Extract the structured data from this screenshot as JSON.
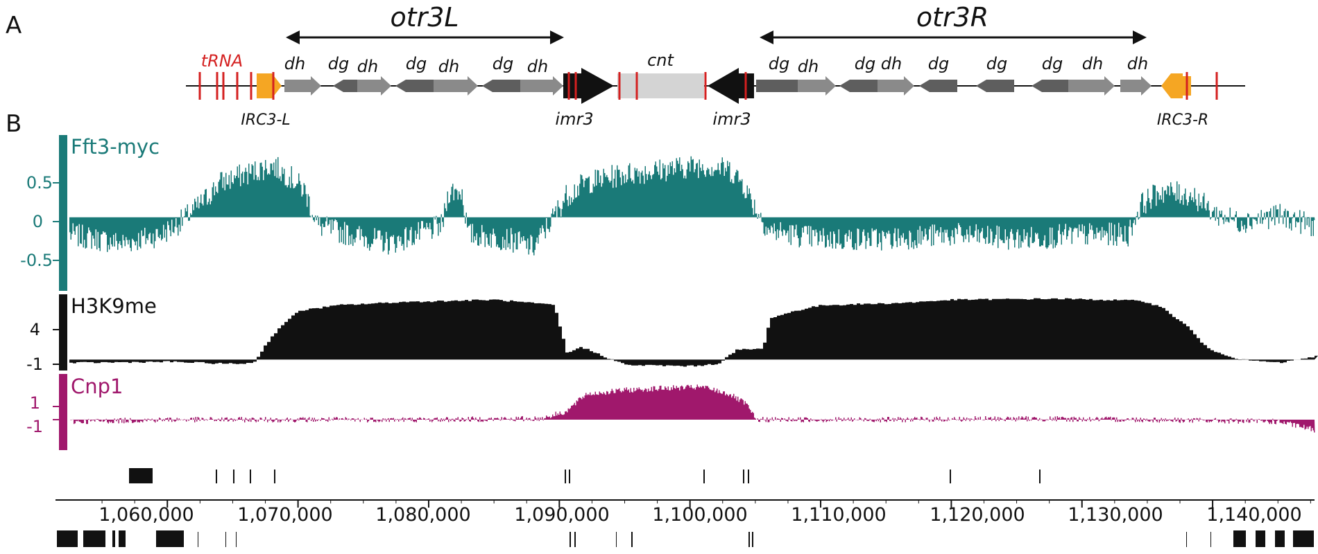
{
  "panels": {
    "a": "A",
    "b": "B"
  },
  "regions": {
    "left": "otr3L",
    "right": "otr3R"
  },
  "features": {
    "trna": "tRNA",
    "irc_left": "IRC3-L",
    "irc_right": "IRC3-R",
    "imr_left": "imr3",
    "imr_right": "imr3",
    "cnt": "cnt"
  },
  "repeat_labels": {
    "left": [
      "dh",
      "dg",
      "dh",
      "dg",
      "dh",
      "dg",
      "dh"
    ],
    "right": [
      "dg",
      "dh",
      "dg",
      "dh",
      "dg",
      "dg",
      "dg",
      "dh",
      "dh"
    ]
  },
  "colors": {
    "fft3": "#1a7a78",
    "h3k9": "#111111",
    "cnp1": "#a0186c",
    "trna": "#d42020",
    "irc": "#f5a623"
  },
  "chart_data": {
    "type": "area",
    "x_axis": {
      "range": [
        1052500,
        1147800
      ],
      "ticks": [
        1060000,
        1070000,
        1080000,
        1090000,
        1100000,
        1110000,
        1120000,
        1130000,
        1140000
      ],
      "tick_labels": [
        "1,060,000",
        "1,070,000",
        "1,080,000",
        "1,090,000",
        "1,100,000",
        "1,110,000",
        "1,120,000",
        "1,130,000",
        "1,140,000"
      ]
    },
    "tracks": [
      {
        "name": "Fft3-myc",
        "ylim": [
          -0.85,
          0.95
        ],
        "ticks": [
          0.5,
          0,
          -0.5
        ],
        "tick_labels": [
          "0.5",
          "0",
          "-0.5"
        ]
      },
      {
        "name": "H3K9me",
        "ylim": [
          -1,
          6
        ],
        "ticks": [
          4,
          -1
        ],
        "tick_labels": [
          "4",
          "-1"
        ]
      },
      {
        "name": "Cnp1",
        "ylim": [
          -3,
          4.5
        ],
        "ticks": [
          1,
          -1
        ],
        "tick_labels": [
          "1",
          "-1"
        ]
      }
    ],
    "series": [
      {
        "name": "Fft3-myc",
        "profile": [
          [
            1052500,
            -0.2
          ],
          [
            1056500,
            -0.3
          ],
          [
            1059500,
            -0.2
          ],
          [
            1061000,
            -0.05
          ],
          [
            1062500,
            0.15
          ],
          [
            1064000,
            0.4
          ],
          [
            1066000,
            0.5
          ],
          [
            1068000,
            0.6
          ],
          [
            1069500,
            0.45
          ],
          [
            1070500,
            0.3
          ],
          [
            1071500,
            -0.1
          ],
          [
            1074000,
            -0.2
          ],
          [
            1077000,
            -0.3
          ],
          [
            1079000,
            -0.2
          ],
          [
            1081000,
            -0.1
          ],
          [
            1081500,
            0.3
          ],
          [
            1082500,
            0.3
          ],
          [
            1083000,
            -0.2
          ],
          [
            1086000,
            -0.25
          ],
          [
            1088000,
            -0.35
          ],
          [
            1089500,
            0.0
          ],
          [
            1090500,
            0.25
          ],
          [
            1092000,
            0.4
          ],
          [
            1095000,
            0.5
          ],
          [
            1098000,
            0.55
          ],
          [
            1101000,
            0.6
          ],
          [
            1103000,
            0.55
          ],
          [
            1104000,
            0.4
          ],
          [
            1105000,
            0.1
          ],
          [
            1106000,
            -0.15
          ],
          [
            1110000,
            -0.25
          ],
          [
            1115000,
            -0.25
          ],
          [
            1120000,
            -0.2
          ],
          [
            1125000,
            -0.25
          ],
          [
            1130000,
            -0.2
          ],
          [
            1133500,
            -0.2
          ],
          [
            1134500,
            0.15
          ],
          [
            1136000,
            0.3
          ],
          [
            1138500,
            0.25
          ],
          [
            1140000,
            0.05
          ],
          [
            1142000,
            -0.05
          ],
          [
            1145000,
            0.02
          ],
          [
            1147800,
            -0.1
          ]
        ]
      },
      {
        "name": "H3K9me",
        "profile": [
          [
            1052500,
            -0.3
          ],
          [
            1060000,
            -0.2
          ],
          [
            1065000,
            -0.4
          ],
          [
            1066500,
            -0.3
          ],
          [
            1067500,
            1.5
          ],
          [
            1068500,
            3.0
          ],
          [
            1070000,
            4.5
          ],
          [
            1073000,
            5.0
          ],
          [
            1078000,
            5.3
          ],
          [
            1085000,
            5.5
          ],
          [
            1089500,
            5.0
          ],
          [
            1090500,
            0.5
          ],
          [
            1091500,
            1.2
          ],
          [
            1093500,
            0.2
          ],
          [
            1095000,
            -0.5
          ],
          [
            1100000,
            -0.6
          ],
          [
            1102000,
            -0.4
          ],
          [
            1103500,
            0.9
          ],
          [
            1105500,
            1.0
          ],
          [
            1106000,
            3.8
          ],
          [
            1108000,
            4.5
          ],
          [
            1110000,
            5.0
          ],
          [
            1116000,
            5.2
          ],
          [
            1120000,
            5.5
          ],
          [
            1128000,
            5.6
          ],
          [
            1134500,
            5.4
          ],
          [
            1136000,
            4.8
          ],
          [
            1138000,
            3.0
          ],
          [
            1139500,
            1.0
          ],
          [
            1142000,
            0.0
          ],
          [
            1145000,
            -0.3
          ],
          [
            1147800,
            0.3
          ]
        ]
      },
      {
        "name": "Cnp1",
        "profile": [
          [
            1052500,
            -0.2
          ],
          [
            1060000,
            0.0
          ],
          [
            1070000,
            0.0
          ],
          [
            1080000,
            0.0
          ],
          [
            1088500,
            0.1
          ],
          [
            1090500,
            0.8
          ],
          [
            1092000,
            2.5
          ],
          [
            1095000,
            2.9
          ],
          [
            1098000,
            3.1
          ],
          [
            1101000,
            3.2
          ],
          [
            1103000,
            2.5
          ],
          [
            1104300,
            1.5
          ],
          [
            1105000,
            0.0
          ],
          [
            1115000,
            0.0
          ],
          [
            1125000,
            0.1
          ],
          [
            1135000,
            0.0
          ],
          [
            1145000,
            -0.2
          ],
          [
            1147800,
            -1.0
          ]
        ]
      }
    ]
  }
}
